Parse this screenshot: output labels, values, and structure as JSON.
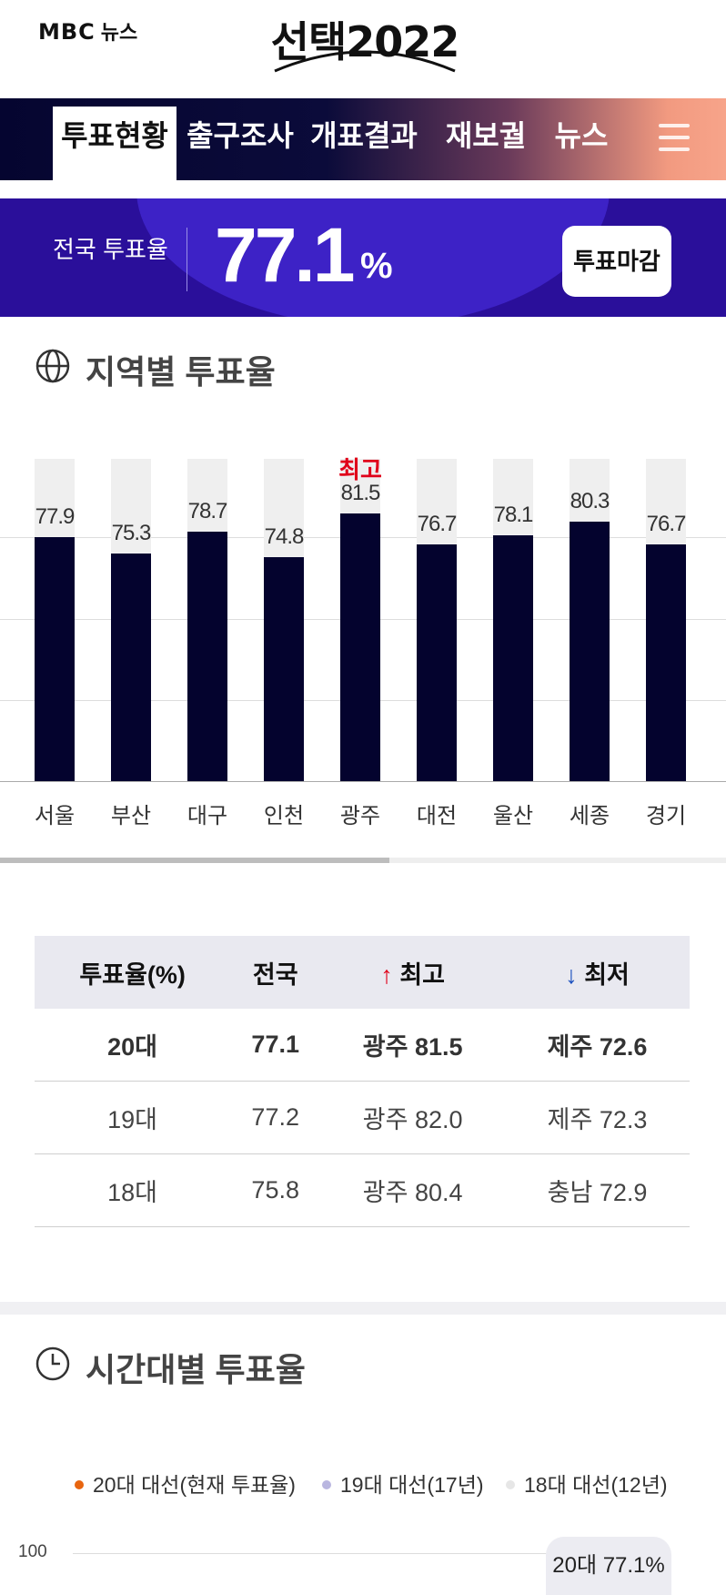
{
  "header": {
    "brand": "MBC",
    "brand_sub": "뉴스",
    "event_title": "선택2022"
  },
  "nav": {
    "tabs": [
      "투표현황",
      "출구조사",
      "개표결과",
      "재보궐",
      "뉴스"
    ],
    "active_index": 0,
    "menu_icon": "hamburger-icon"
  },
  "turnout": {
    "label": "전국 투표율",
    "value": "77.1",
    "unit": "%",
    "status_button": "투표마감"
  },
  "regional": {
    "title": "지역별 투표율",
    "icon": "globe-icon",
    "highlight_label": "최고"
  },
  "chart_data": {
    "type": "bar",
    "categories": [
      "서울",
      "부산",
      "대구",
      "인천",
      "광주",
      "대전",
      "울산",
      "세종",
      "경기"
    ],
    "values": [
      77.9,
      75.3,
      78.7,
      74.8,
      81.5,
      76.7,
      78.1,
      80.3,
      76.7
    ],
    "max_category": "광주",
    "colors": {
      "bar": "#04032e",
      "background_bar": "#efefef",
      "highlight": "#e0001a"
    }
  },
  "table": {
    "headers": [
      "투표율(%)",
      "전국",
      "최고",
      "최저"
    ],
    "rows": [
      [
        "20대",
        "77.1",
        "광주 81.5",
        "제주 72.6"
      ],
      [
        "19대",
        "77.2",
        "광주 82.0",
        "제주 72.3"
      ],
      [
        "18대",
        "75.8",
        "광주 80.4",
        "충남 72.9"
      ]
    ]
  },
  "hourly": {
    "title": "시간대별 투표율",
    "icon": "clock-icon",
    "legend": [
      {
        "label": "20대 대선(현재 투표율)",
        "color": "#e8650f"
      },
      {
        "label": "19대 대선(17년)",
        "color": "#b9b6e0"
      },
      {
        "label": "18대 대선(12년)",
        "color": "#e6e6e6"
      }
    ],
    "y_tick": "100",
    "callout": "20대 77.1%"
  }
}
